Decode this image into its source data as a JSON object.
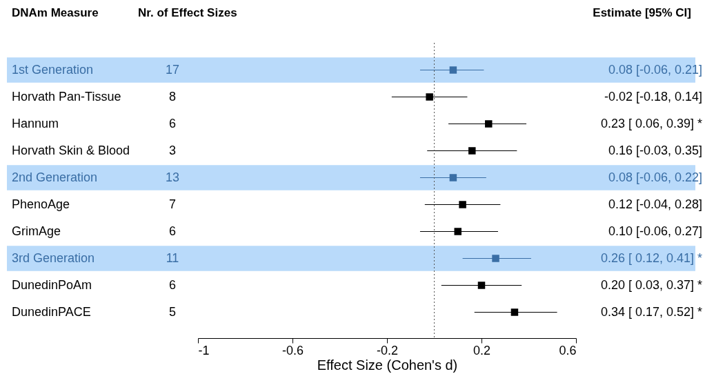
{
  "chart_data": {
    "type": "scatter",
    "orientation": "horizontal",
    "marker": "square",
    "ylabel": "DNAm Measure",
    "y2label": "Estimate [95% CI]",
    "xlabel": "Effect Size (Cohen's d)",
    "categories": [
      "1st Generation",
      "Horvath Pan-Tissue",
      "Hannum",
      "Horvath Skin & Blood",
      "2nd Generation",
      "PhenoAge",
      "GrimAge",
      "3rd Generation",
      "DunedinPoAm",
      "DunedinPACE"
    ],
    "values": [
      0.08,
      -0.02,
      0.23,
      0.16,
      0.08,
      0.12,
      0.1,
      0.26,
      0.2,
      0.34
    ],
    "errors": [
      [
        -0.06,
        0.21
      ],
      [
        -0.18,
        0.14
      ],
      [
        0.06,
        0.39
      ],
      [
        -0.03,
        0.35
      ],
      [
        -0.06,
        0.22
      ],
      [
        -0.04,
        0.28
      ],
      [
        -0.06,
        0.27
      ],
      [
        0.12,
        0.41
      ],
      [
        0.03,
        0.37
      ],
      [
        0.17,
        0.52
      ]
    ],
    "colors": [
      "#3a6ea5",
      "#000000",
      "#000000",
      "#000000",
      "#3a6ea5",
      "#000000",
      "#000000",
      "#3a6ea5",
      "#000000",
      "#000000"
    ],
    "value_labels": [
      "0.08 [-0.06, 0.21]",
      "-0.02 [-0.18, 0.14]",
      "0.23 [ 0.06, 0.39] *",
      "0.16 [-0.03, 0.35]",
      "0.08 [-0.06, 0.22]",
      "0.12 [-0.04, 0.28]",
      "0.10 [-0.06, 0.27]",
      "0.26 [ 0.12, 0.41] *",
      "0.20 [ 0.03, 0.37] *",
      "0.34 [ 0.17, 0.52] *"
    ],
    "annotations": [
      "Nr. of Effect Sizes",
      "17",
      "8",
      "6",
      "3",
      "13",
      "7",
      "6",
      "11",
      "6",
      "5"
    ],
    "xlim": [
      -1,
      0.6
    ],
    "xticks": [
      -1,
      -0.6,
      -0.2,
      0.2,
      0.6
    ],
    "ref_lines": [
      {
        "axis": "x",
        "value": 0,
        "label": null,
        "line_style": "dotted",
        "color": "#555555"
      }
    ],
    "bands": [
      {
        "axis": "y",
        "from": "1st Generation",
        "to": "1st Generation",
        "color": "#b9dafa",
        "label": null
      },
      {
        "axis": "y",
        "from": "2nd Generation",
        "to": "2nd Generation",
        "color": "#b9dafa",
        "label": null
      },
      {
        "axis": "y",
        "from": "3rd Generation",
        "to": "3rd Generation",
        "color": "#b9dafa",
        "label": null
      }
    ],
    "grid": false
  }
}
